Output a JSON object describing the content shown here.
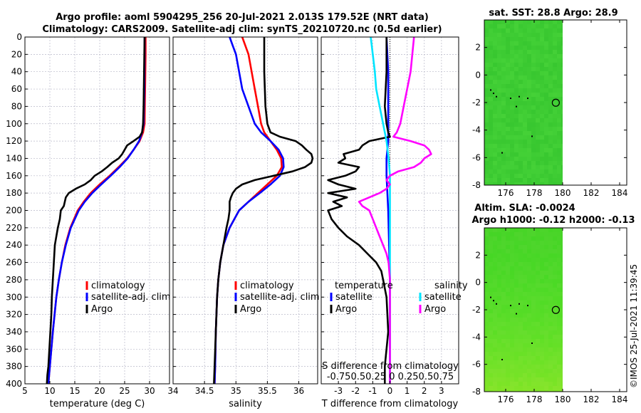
{
  "figure": {
    "title_line1": "Argo profile: aoml 5904295_256 20-Jul-2021 2.013S 179.52E (NRT data)",
    "title_line2": "Climatology: CARS2009. Satellite-adj clim: synTS_20210720.nc (0.5d earlier)",
    "watermark": "©IMOS 25-Jul-2021 11:39:45"
  },
  "colors": {
    "climatology": "#ff0000",
    "satellite": "#0000ff",
    "argo": "#000000",
    "sal_satellite": "#00e5ff",
    "sal_argo": "#ff00ff",
    "grid": "#b8b8c8"
  },
  "chart_data": [
    {
      "id": "temperature",
      "type": "line",
      "xlabel": "temperature (deg C)",
      "ylabel": "",
      "xlim": [
        5,
        34
      ],
      "ylim": [
        400,
        0
      ],
      "xticks": [
        5,
        10,
        15,
        20,
        25,
        30
      ],
      "yticks": [
        0,
        20,
        40,
        60,
        80,
        100,
        120,
        140,
        160,
        180,
        200,
        220,
        240,
        260,
        280,
        300,
        320,
        340,
        360,
        380,
        400
      ],
      "legend": [
        "climatology",
        "satellite-adj. clim",
        "Argo"
      ],
      "legend_position": "lower-right",
      "series": [
        {
          "name": "climatology",
          "color": "#ff0000",
          "depth": [
            0,
            20,
            60,
            100,
            110,
            120,
            130,
            140,
            150,
            160,
            170,
            180,
            190,
            200,
            220,
            240,
            260,
            280,
            300,
            340,
            380,
            400
          ],
          "values": [
            29.2,
            29.2,
            29.1,
            29.0,
            28.7,
            28.0,
            26.8,
            25.5,
            23.8,
            22.0,
            20.0,
            18.2,
            16.8,
            15.6,
            14.1,
            13.1,
            12.4,
            11.8,
            11.3,
            10.6,
            10.0,
            9.7
          ]
        },
        {
          "name": "satellite-adj. clim",
          "color": "#0000ff",
          "depth": [
            0,
            20,
            60,
            100,
            110,
            120,
            130,
            140,
            150,
            160,
            170,
            180,
            190,
            200,
            220,
            240,
            260,
            280,
            300,
            340,
            380,
            400
          ],
          "values": [
            29.0,
            29.0,
            28.95,
            28.8,
            28.5,
            27.9,
            26.8,
            25.6,
            24.0,
            22.2,
            20.3,
            18.5,
            17.0,
            15.8,
            14.2,
            13.2,
            12.4,
            11.8,
            11.3,
            10.6,
            10.0,
            9.7
          ]
        },
        {
          "name": "Argo",
          "color": "#000000",
          "depth": [
            0,
            40,
            80,
            100,
            110,
            115,
            120,
            125,
            130,
            135,
            140,
            145,
            150,
            155,
            160,
            165,
            170,
            175,
            180,
            185,
            190,
            195,
            200,
            210,
            220,
            230,
            240,
            260,
            280,
            300,
            320,
            340,
            360,
            380,
            390,
            400
          ],
          "values": [
            29.0,
            28.9,
            28.8,
            28.7,
            28.5,
            28.0,
            26.8,
            25.5,
            25.0,
            24.5,
            23.8,
            22.5,
            21.5,
            20.4,
            19.0,
            18.2,
            17.0,
            15.2,
            13.8,
            13.2,
            13.0,
            12.8,
            12.2,
            12.0,
            11.6,
            11.3,
            11.0,
            10.8,
            10.6,
            10.4,
            10.3,
            10.1,
            9.9,
            9.7,
            9.5,
            9.4
          ]
        }
      ]
    },
    {
      "id": "salinity",
      "type": "line",
      "xlabel": "salinity",
      "ylabel": "",
      "xlim": [
        34,
        36.3
      ],
      "ylim": [
        400,
        0
      ],
      "xticks": [
        "34",
        "34.5",
        "35",
        "35.5",
        "36"
      ],
      "yticks": [],
      "legend": [
        "climatology",
        "satellite-adj. clim",
        "Argo"
      ],
      "legend_position": "lower-right",
      "series": [
        {
          "name": "climatology",
          "color": "#ff0000",
          "depth": [
            0,
            10,
            20,
            40,
            60,
            80,
            100,
            110,
            120,
            130,
            140,
            150,
            160,
            170,
            180,
            190,
            200,
            220,
            240,
            260,
            280,
            300,
            340,
            380,
            400
          ],
          "values": [
            35.1,
            35.15,
            35.2,
            35.25,
            35.3,
            35.35,
            35.4,
            35.45,
            35.55,
            35.65,
            35.72,
            35.73,
            35.65,
            35.5,
            35.35,
            35.2,
            35.05,
            34.9,
            34.8,
            34.75,
            34.72,
            34.7,
            34.68,
            34.67,
            34.66
          ]
        },
        {
          "name": "satellite-adj. clim",
          "color": "#0000ff",
          "depth": [
            0,
            10,
            20,
            40,
            60,
            80,
            100,
            110,
            120,
            130,
            140,
            150,
            160,
            170,
            180,
            190,
            200,
            220,
            240,
            260,
            280,
            300,
            340,
            380,
            400
          ],
          "values": [
            34.9,
            34.95,
            35.0,
            35.05,
            35.1,
            35.2,
            35.3,
            35.4,
            35.55,
            35.68,
            35.75,
            35.76,
            35.7,
            35.55,
            35.38,
            35.2,
            35.05,
            34.9,
            34.8,
            34.75,
            34.72,
            34.7,
            34.68,
            34.67,
            34.66
          ]
        },
        {
          "name": "Argo",
          "color": "#000000",
          "depth": [
            0,
            40,
            80,
            100,
            110,
            115,
            120,
            125,
            130,
            135,
            140,
            145,
            150,
            155,
            160,
            165,
            170,
            175,
            180,
            185,
            190,
            200,
            210,
            220,
            240,
            260,
            280,
            300,
            340,
            380,
            400
          ],
          "values": [
            35.45,
            35.45,
            35.47,
            35.5,
            35.55,
            35.7,
            35.95,
            36.05,
            36.12,
            36.2,
            36.22,
            36.2,
            36.1,
            35.9,
            35.6,
            35.3,
            35.1,
            35.0,
            34.95,
            34.92,
            34.9,
            34.9,
            34.88,
            34.85,
            34.8,
            34.75,
            34.72,
            34.7,
            34.68,
            34.66,
            34.65
          ]
        }
      ]
    },
    {
      "id": "difference",
      "type": "line",
      "xlabel": "T difference from climatology",
      "ylabel": "",
      "xlim": [
        -4,
        4
      ],
      "ylim": [
        400,
        0
      ],
      "xticks": [
        "-3",
        "-2",
        "-1",
        "0",
        "1",
        "2",
        "3"
      ],
      "s_axis_label": "S difference from climatology",
      "s_ticks": "-0.750.50.25 0  0.250.50.75",
      "legend_titles": [
        "temperature",
        "salinity"
      ],
      "legend": [
        "satellite",
        "Argo",
        "satellite",
        "Argo"
      ],
      "legend_position": "lower",
      "series": [
        {
          "name": "temperature satellite",
          "color": "#0000ff",
          "depth": [
            0,
            40,
            80,
            100,
            120,
            140,
            160,
            180,
            200,
            240,
            280,
            320,
            360,
            400
          ],
          "values": [
            -0.2,
            -0.1,
            -0.1,
            -0.1,
            -0.1,
            -0.2,
            -0.2,
            -0.15,
            -0.1,
            -0.05,
            0,
            0,
            0,
            0
          ]
        },
        {
          "name": "temperature Argo",
          "color": "#000000",
          "depth": [
            0,
            40,
            80,
            100,
            110,
            115,
            120,
            125,
            130,
            135,
            140,
            145,
            150,
            155,
            160,
            165,
            170,
            175,
            180,
            185,
            190,
            195,
            200,
            210,
            220,
            230,
            240,
            250,
            260,
            270,
            280,
            300,
            340,
            380,
            400
          ],
          "values": [
            -0.2,
            -0.2,
            -0.3,
            -0.2,
            -0.1,
            0,
            -1.2,
            -1.6,
            -1.8,
            -2.7,
            -2.6,
            -3.0,
            -1.8,
            -2.0,
            -2.6,
            -3.6,
            -3.0,
            -2.0,
            -3.6,
            -2.5,
            -3.3,
            -2.8,
            -3.6,
            -3.4,
            -3.0,
            -2.5,
            -1.8,
            -1.3,
            -0.8,
            -0.5,
            -0.4,
            -0.2,
            -0.1,
            -0.3,
            -0.3
          ]
        },
        {
          "name": "salinity satellite",
          "color": "#00e5ff",
          "depth": [
            0,
            20,
            40,
            60,
            80,
            100,
            120,
            140,
            160,
            180,
            200,
            240,
            280,
            320,
            360,
            400
          ],
          "values": [
            -0.28,
            -0.25,
            -0.22,
            -0.2,
            -0.15,
            -0.1,
            -0.05,
            -0.02,
            0,
            0,
            0,
            0,
            0,
            0,
            0,
            0
          ]
        },
        {
          "name": "salinity Argo",
          "color": "#ff00ff",
          "depth": [
            0,
            40,
            80,
            100,
            110,
            115,
            120,
            125,
            130,
            135,
            140,
            145,
            150,
            155,
            160,
            165,
            170,
            175,
            180,
            185,
            190,
            195,
            200,
            210,
            220,
            230,
            240,
            250,
            260,
            280,
            300,
            340,
            400
          ],
          "values": [
            0.35,
            0.3,
            0.2,
            0.15,
            0.1,
            0.05,
            0.3,
            0.5,
            0.57,
            0.6,
            0.5,
            0.45,
            0.35,
            0.12,
            0,
            -0.05,
            0,
            -0.05,
            -0.15,
            -0.3,
            -0.45,
            -0.4,
            -0.3,
            -0.25,
            -0.2,
            -0.15,
            -0.1,
            -0.05,
            -0.02,
            0,
            0,
            0,
            0
          ]
        }
      ]
    },
    {
      "id": "sst_map",
      "type": "heatmap",
      "title": "sat. SST: 28.8 Argo: 28.9",
      "xticks": [
        "176",
        "178",
        "180",
        "182",
        "184"
      ],
      "yticks": [
        "2",
        "0",
        "-2",
        "-4",
        "-6",
        "-8"
      ],
      "xlim": [
        174.5,
        184.5
      ],
      "ylim": [
        -8,
        4
      ],
      "data_extent_lon": [
        174.5,
        180
      ],
      "argo_marker": [
        179.52,
        -2.013
      ],
      "base_color": "#33cc33"
    },
    {
      "id": "sla_map",
      "type": "heatmap",
      "title_line1": "Altim. SLA: -0.0024",
      "title_line2": "Argo h1000: -0.12 h2000: -0.13",
      "xticks": [
        "176",
        "178",
        "180",
        "182",
        "184"
      ],
      "yticks": [
        "2",
        "0",
        "-2",
        "-4",
        "-6",
        "-8"
      ],
      "xlim": [
        174.5,
        184.5
      ],
      "ylim": [
        -8,
        4
      ],
      "data_extent_lon": [
        174.5,
        180
      ],
      "argo_marker": [
        179.52,
        -2.013
      ],
      "base_color": "#44dd22",
      "low_color": "#aaee22"
    }
  ]
}
